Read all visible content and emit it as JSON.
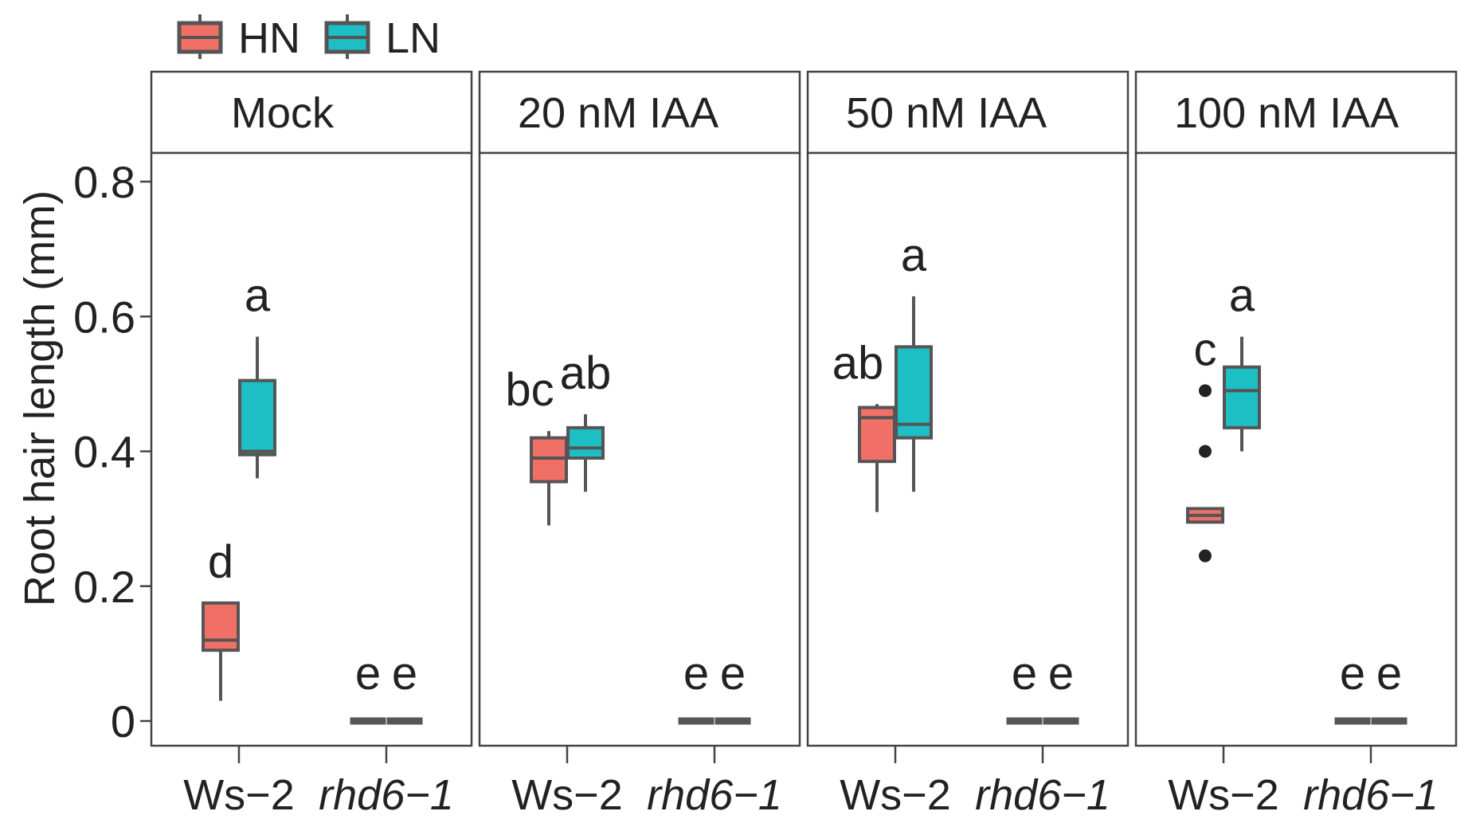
{
  "chart_data": {
    "type": "box",
    "ylabel": "Root hair length (mm)",
    "ylim": [
      0,
      0.8
    ],
    "y_ticks": [
      {
        "value": 0,
        "label": "0"
      },
      {
        "value": 0.2,
        "label": "0.2"
      },
      {
        "value": 0.4,
        "label": "0.4"
      },
      {
        "value": 0.6,
        "label": "0.6"
      },
      {
        "value": 0.8,
        "label": "0.8"
      }
    ],
    "categories": [
      "Ws−2",
      "rhd6−1"
    ],
    "legend": [
      {
        "name": "HN",
        "color": "#F07068"
      },
      {
        "name": "LN",
        "color": "#1EBFC4"
      }
    ],
    "colors": {
      "HN": "#F07068",
      "LN": "#1EBFC4",
      "stroke": "#555555",
      "frame": "#444444"
    },
    "panels": [
      {
        "title": "Mock",
        "groups": [
          {
            "genotype": "Ws−2",
            "series": "HN",
            "min": 0.03,
            "q1": 0.105,
            "median": 0.12,
            "q3": 0.175,
            "max": 0.175,
            "outliers": [],
            "letter": "d"
          },
          {
            "genotype": "Ws−2",
            "series": "LN",
            "min": 0.36,
            "q1": 0.395,
            "median": 0.4,
            "q3": 0.505,
            "max": 0.57,
            "outliers": [],
            "letter": "a"
          },
          {
            "genotype": "rhd6−1",
            "series": "HN",
            "min": 0,
            "q1": 0,
            "median": 0,
            "q3": 0,
            "max": 0,
            "outliers": [],
            "letter": "e"
          },
          {
            "genotype": "rhd6−1",
            "series": "LN",
            "min": 0,
            "q1": 0,
            "median": 0,
            "q3": 0,
            "max": 0,
            "outliers": [],
            "letter": "e"
          }
        ]
      },
      {
        "title": "20 nM IAA",
        "groups": [
          {
            "genotype": "Ws−2",
            "series": "HN",
            "min": 0.29,
            "q1": 0.355,
            "median": 0.39,
            "q3": 0.42,
            "max": 0.43,
            "outliers": [],
            "letter": "bc"
          },
          {
            "genotype": "Ws−2",
            "series": "LN",
            "min": 0.34,
            "q1": 0.39,
            "median": 0.405,
            "q3": 0.435,
            "max": 0.455,
            "outliers": [],
            "letter": "ab"
          },
          {
            "genotype": "rhd6−1",
            "series": "HN",
            "min": 0,
            "q1": 0,
            "median": 0,
            "q3": 0,
            "max": 0,
            "outliers": [],
            "letter": "e"
          },
          {
            "genotype": "rhd6−1",
            "series": "LN",
            "min": 0,
            "q1": 0,
            "median": 0,
            "q3": 0,
            "max": 0,
            "outliers": [],
            "letter": "e"
          }
        ]
      },
      {
        "title": "50 nM IAA",
        "groups": [
          {
            "genotype": "Ws−2",
            "series": "HN",
            "min": 0.31,
            "q1": 0.385,
            "median": 0.45,
            "q3": 0.465,
            "max": 0.47,
            "outliers": [],
            "letter": "ab"
          },
          {
            "genotype": "Ws−2",
            "series": "LN",
            "min": 0.34,
            "q1": 0.42,
            "median": 0.44,
            "q3": 0.555,
            "max": 0.63,
            "outliers": [],
            "letter": "a"
          },
          {
            "genotype": "rhd6−1",
            "series": "HN",
            "min": 0,
            "q1": 0,
            "median": 0,
            "q3": 0,
            "max": 0,
            "outliers": [],
            "letter": "e"
          },
          {
            "genotype": "rhd6−1",
            "series": "LN",
            "min": 0,
            "q1": 0,
            "median": 0,
            "q3": 0,
            "max": 0,
            "outliers": [],
            "letter": "e"
          }
        ]
      },
      {
        "title": "100 nM IAA",
        "groups": [
          {
            "genotype": "Ws−2",
            "series": "HN",
            "min": 0.295,
            "q1": 0.295,
            "median": 0.305,
            "q3": 0.315,
            "max": 0.315,
            "outliers": [
              0.245,
              0.4,
              0.49
            ],
            "letter": "c"
          },
          {
            "genotype": "Ws−2",
            "series": "LN",
            "min": 0.4,
            "q1": 0.435,
            "median": 0.49,
            "q3": 0.525,
            "max": 0.57,
            "outliers": [],
            "letter": "a"
          },
          {
            "genotype": "rhd6−1",
            "series": "HN",
            "min": 0,
            "q1": 0,
            "median": 0,
            "q3": 0,
            "max": 0,
            "outliers": [],
            "letter": "e"
          },
          {
            "genotype": "rhd6−1",
            "series": "LN",
            "min": 0,
            "q1": 0,
            "median": 0,
            "q3": 0,
            "max": 0,
            "outliers": [],
            "letter": "e"
          }
        ]
      }
    ]
  }
}
